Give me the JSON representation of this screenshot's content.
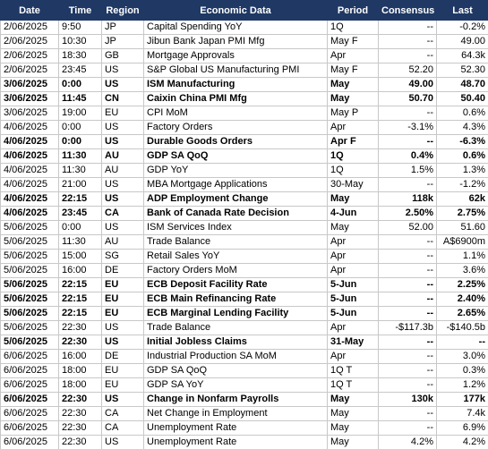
{
  "table": {
    "header": [
      "Date",
      "Time",
      "Region",
      "Economic Data",
      "Period",
      "Consensus",
      "Last"
    ],
    "rows": [
      {
        "cells": [
          "2/06/2025",
          "9:50",
          "JP",
          "Capital Spending YoY",
          "1Q",
          "--",
          "-0.2%"
        ],
        "bold": false
      },
      {
        "cells": [
          "2/06/2025",
          "10:30",
          "JP",
          "Jibun Bank Japan PMI Mfg",
          "May F",
          "--",
          "49.00"
        ],
        "bold": false
      },
      {
        "cells": [
          "2/06/2025",
          "18:30",
          "GB",
          "Mortgage Approvals",
          "Apr",
          "--",
          "64.3k"
        ],
        "bold": false
      },
      {
        "cells": [
          "2/06/2025",
          "23:45",
          "US",
          "S&P Global US Manufacturing PMI",
          "May F",
          "52.20",
          "52.30"
        ],
        "bold": false
      },
      {
        "cells": [
          "3/06/2025",
          "0:00",
          "US",
          "ISM Manufacturing",
          "May",
          "49.00",
          "48.70"
        ],
        "bold": true
      },
      {
        "cells": [
          "3/06/2025",
          "11:45",
          "CN",
          "Caixin China PMI Mfg",
          "May",
          "50.70",
          "50.40"
        ],
        "bold": true
      },
      {
        "cells": [
          "3/06/2025",
          "19:00",
          "EU",
          "CPI MoM",
          "May P",
          "--",
          "0.6%"
        ],
        "bold": false
      },
      {
        "cells": [
          "4/06/2025",
          "0:00",
          "US",
          "Factory Orders",
          "Apr",
          "-3.1%",
          "4.3%"
        ],
        "bold": false
      },
      {
        "cells": [
          "4/06/2025",
          "0:00",
          "US",
          "Durable Goods Orders",
          "Apr F",
          "--",
          "-6.3%"
        ],
        "bold": true
      },
      {
        "cells": [
          "4/06/2025",
          "11:30",
          "AU",
          "GDP SA QoQ",
          "1Q",
          "0.4%",
          "0.6%"
        ],
        "bold": true
      },
      {
        "cells": [
          "4/06/2025",
          "11:30",
          "AU",
          "GDP YoY",
          "1Q",
          "1.5%",
          "1.3%"
        ],
        "bold": false
      },
      {
        "cells": [
          "4/06/2025",
          "21:00",
          "US",
          "MBA Mortgage Applications",
          "30-May",
          "--",
          "-1.2%"
        ],
        "bold": false
      },
      {
        "cells": [
          "4/06/2025",
          "22:15",
          "US",
          "ADP Employment Change",
          "May",
          "118k",
          "62k"
        ],
        "bold": true
      },
      {
        "cells": [
          "4/06/2025",
          "23:45",
          "CA",
          "Bank of Canada Rate Decision",
          "4-Jun",
          "2.50%",
          "2.75%"
        ],
        "bold": true
      },
      {
        "cells": [
          "5/06/2025",
          "0:00",
          "US",
          "ISM Services Index",
          "May",
          "52.00",
          "51.60"
        ],
        "bold": false
      },
      {
        "cells": [
          "5/06/2025",
          "11:30",
          "AU",
          "Trade Balance",
          "Apr",
          "--",
          "A$6900m"
        ],
        "bold": false
      },
      {
        "cells": [
          "5/06/2025",
          "15:00",
          "SG",
          "Retail Sales YoY",
          "Apr",
          "--",
          "1.1%"
        ],
        "bold": false
      },
      {
        "cells": [
          "5/06/2025",
          "16:00",
          "DE",
          "Factory Orders MoM",
          "Apr",
          "--",
          "3.6%"
        ],
        "bold": false
      },
      {
        "cells": [
          "5/06/2025",
          "22:15",
          "EU",
          "ECB Deposit Facility Rate",
          "5-Jun",
          "--",
          "2.25%"
        ],
        "bold": true
      },
      {
        "cells": [
          "5/06/2025",
          "22:15",
          "EU",
          "ECB Main Refinancing Rate",
          "5-Jun",
          "--",
          "2.40%"
        ],
        "bold": true
      },
      {
        "cells": [
          "5/06/2025",
          "22:15",
          "EU",
          "ECB Marginal Lending Facility",
          "5-Jun",
          "--",
          "2.65%"
        ],
        "bold": true
      },
      {
        "cells": [
          "5/06/2025",
          "22:30",
          "US",
          "Trade Balance",
          "Apr",
          "-$117.3b",
          "-$140.5b"
        ],
        "bold": false
      },
      {
        "cells": [
          "5/06/2025",
          "22:30",
          "US",
          "Initial Jobless Claims",
          "31-May",
          "--",
          "--"
        ],
        "bold": true
      },
      {
        "cells": [
          "6/06/2025",
          "16:00",
          "DE",
          "Industrial Production SA MoM",
          "Apr",
          "--",
          "3.0%"
        ],
        "bold": false
      },
      {
        "cells": [
          "6/06/2025",
          "18:00",
          "EU",
          "GDP SA QoQ",
          "1Q T",
          "--",
          "0.3%"
        ],
        "bold": false
      },
      {
        "cells": [
          "6/06/2025",
          "18:00",
          "EU",
          "GDP SA YoY",
          "1Q T",
          "--",
          "1.2%"
        ],
        "bold": false
      },
      {
        "cells": [
          "6/06/2025",
          "22:30",
          "US",
          "Change in Nonfarm Payrolls",
          "May",
          "130k",
          "177k"
        ],
        "bold": true
      },
      {
        "cells": [
          "6/06/2025",
          "22:30",
          "CA",
          "Net Change in Employment",
          "May",
          "--",
          "7.4k"
        ],
        "bold": false
      },
      {
        "cells": [
          "6/06/2025",
          "22:30",
          "CA",
          "Unemployment Rate",
          "May",
          "--",
          "6.9%"
        ],
        "bold": false
      },
      {
        "cells": [
          "6/06/2025",
          "22:30",
          "US",
          "Unemployment Rate",
          "May",
          "4.2%",
          "4.2%"
        ],
        "bold": false
      }
    ]
  }
}
